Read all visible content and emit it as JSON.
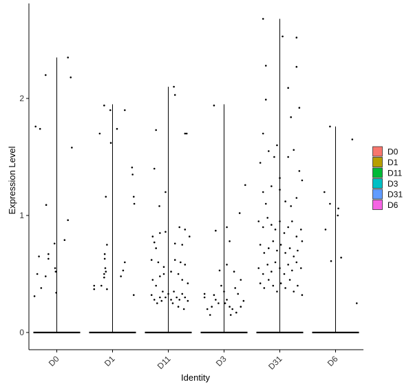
{
  "chart_data": {
    "type": "scatter",
    "subtype": "violin-jitter",
    "xlabel": "Identity",
    "ylabel": "Expression Level",
    "ylim": [
      -0.15,
      2.8
    ],
    "y_ticks": [
      0,
      1,
      2
    ],
    "categories": [
      "D0",
      "D1",
      "D11",
      "D3",
      "D31",
      "D6"
    ],
    "violin_max": [
      2.35,
      1.95,
      2.1,
      1.95,
      2.68,
      1.76
    ],
    "legend_position": "right",
    "grid": false,
    "legend": [
      {
        "name": "D0",
        "color": "#F8766D"
      },
      {
        "name": "D1",
        "color": "#B79F00"
      },
      {
        "name": "D11",
        "color": "#00BA38"
      },
      {
        "name": "D3",
        "color": "#00BFC4"
      },
      {
        "name": "D31",
        "color": "#619CFF"
      },
      {
        "name": "D6",
        "color": "#F564E3"
      }
    ],
    "points": {
      "D0": [
        [
          -0.38,
          1.76
        ],
        [
          -0.3,
          1.74
        ],
        [
          -0.2,
          2.2
        ],
        [
          0.2,
          2.35
        ],
        [
          0.25,
          2.18
        ],
        [
          0.27,
          1.58
        ],
        [
          -0.19,
          1.09
        ],
        [
          -0.32,
          0.65
        ],
        [
          -0.15,
          0.67
        ],
        [
          -0.15,
          0.63
        ],
        [
          -0.35,
          0.5
        ],
        [
          -0.28,
          0.38
        ],
        [
          -0.2,
          0.48
        ],
        [
          -0.4,
          0.31
        ],
        [
          -0.04,
          0.76
        ],
        [
          -0.03,
          0.55
        ],
        [
          -0.02,
          0.52
        ],
        [
          -0.01,
          0.34
        ],
        [
          0.14,
          0.79
        ],
        [
          0.2,
          0.96
        ]
      ],
      "D1": [
        [
          -0.15,
          1.94
        ],
        [
          -0.04,
          1.9
        ],
        [
          -0.03,
          1.62
        ],
        [
          0.08,
          1.74
        ],
        [
          0.22,
          1.9
        ],
        [
          -0.23,
          1.7
        ],
        [
          -0.12,
          1.16
        ],
        [
          0.35,
          1.41
        ],
        [
          0.36,
          1.35
        ],
        [
          0.38,
          1.16
        ],
        [
          0.39,
          1.1
        ],
        [
          -0.1,
          0.75
        ],
        [
          -0.14,
          0.67
        ],
        [
          -0.14,
          0.63
        ],
        [
          -0.13,
          0.55
        ],
        [
          -0.12,
          0.52
        ],
        [
          0.22,
          0.6
        ],
        [
          0.19,
          0.53
        ],
        [
          -0.33,
          0.4
        ],
        [
          -0.33,
          0.37
        ],
        [
          -0.2,
          0.4
        ],
        [
          -0.15,
          0.5
        ],
        [
          -0.15,
          0.47
        ],
        [
          -0.1,
          0.37
        ],
        [
          0.15,
          0.48
        ],
        [
          0.38,
          0.32
        ]
      ],
      "D11": [
        [
          -0.22,
          1.73
        ],
        [
          0.1,
          2.1
        ],
        [
          0.12,
          2.03
        ],
        [
          0.3,
          1.7
        ],
        [
          0.33,
          1.7
        ],
        [
          -0.25,
          1.4
        ],
        [
          -0.16,
          1.08
        ],
        [
          -0.05,
          1.2
        ],
        [
          -0.28,
          0.82
        ],
        [
          -0.25,
          0.77
        ],
        [
          -0.22,
          0.72
        ],
        [
          -0.15,
          0.85
        ],
        [
          -0.05,
          0.86
        ],
        [
          0.12,
          0.76
        ],
        [
          0.2,
          0.9
        ],
        [
          0.3,
          0.88
        ],
        [
          0.38,
          0.82
        ],
        [
          0.25,
          0.75
        ],
        [
          -0.3,
          0.62
        ],
        [
          -0.18,
          0.6
        ],
        [
          -0.08,
          0.56
        ],
        [
          0.12,
          0.62
        ],
        [
          0.22,
          0.6
        ],
        [
          0.3,
          0.58
        ],
        [
          -0.28,
          0.45
        ],
        [
          -0.22,
          0.4
        ],
        [
          -0.15,
          0.48
        ],
        [
          -0.08,
          0.5
        ],
        [
          0.05,
          0.52
        ],
        [
          0.18,
          0.5
        ],
        [
          0.25,
          0.45
        ],
        [
          0.35,
          0.42
        ],
        [
          -0.3,
          0.32
        ],
        [
          -0.25,
          0.28
        ],
        [
          -0.2,
          0.25
        ],
        [
          -0.15,
          0.3
        ],
        [
          -0.1,
          0.35
        ],
        [
          -0.05,
          0.3
        ],
        [
          0.0,
          0.33
        ],
        [
          0.05,
          0.28
        ],
        [
          0.1,
          0.35
        ],
        [
          0.15,
          0.3
        ],
        [
          0.2,
          0.28
        ],
        [
          0.25,
          0.33
        ],
        [
          0.3,
          0.3
        ],
        [
          0.35,
          0.27
        ],
        [
          -0.12,
          0.27
        ],
        [
          0.08,
          0.25
        ],
        [
          0.18,
          0.22
        ],
        [
          0.28,
          0.2
        ]
      ],
      "D3": [
        [
          -0.18,
          1.94
        ],
        [
          -0.15,
          0.87
        ],
        [
          0.05,
          0.9
        ],
        [
          0.1,
          0.78
        ],
        [
          0.28,
          1.02
        ],
        [
          0.38,
          1.26
        ],
        [
          -0.08,
          0.53
        ],
        [
          0.05,
          0.58
        ],
        [
          0.18,
          0.52
        ],
        [
          0.3,
          0.45
        ],
        [
          -0.35,
          0.33
        ],
        [
          -0.35,
          0.3
        ],
        [
          -0.3,
          0.2
        ],
        [
          -0.25,
          0.15
        ],
        [
          -0.18,
          0.32
        ],
        [
          -0.15,
          0.28
        ],
        [
          -0.1,
          0.25
        ],
        [
          -0.05,
          0.4
        ],
        [
          0.0,
          0.35
        ],
        [
          0.05,
          0.28
        ],
        [
          0.1,
          0.22
        ],
        [
          0.15,
          0.2
        ],
        [
          0.2,
          0.38
        ],
        [
          0.25,
          0.33
        ],
        [
          0.3,
          0.22
        ],
        [
          0.35,
          0.27
        ],
        [
          -0.22,
          0.22
        ],
        [
          0.02,
          0.25
        ],
        [
          0.12,
          0.15
        ],
        [
          0.22,
          0.17
        ]
      ],
      "D31": [
        [
          -0.3,
          2.68
        ],
        [
          0.05,
          2.53
        ],
        [
          0.3,
          2.52
        ],
        [
          -0.25,
          2.28
        ],
        [
          0.3,
          2.27
        ],
        [
          0.15,
          2.09
        ],
        [
          -0.25,
          1.99
        ],
        [
          0.35,
          1.92
        ],
        [
          0.2,
          1.84
        ],
        [
          -0.3,
          1.7
        ],
        [
          -0.05,
          1.6
        ],
        [
          0.25,
          1.56
        ],
        [
          -0.35,
          1.45
        ],
        [
          -0.2,
          1.55
        ],
        [
          -0.1,
          1.5
        ],
        [
          0.0,
          1.32
        ],
        [
          0.15,
          1.5
        ],
        [
          0.35,
          1.38
        ],
        [
          0.4,
          1.3
        ],
        [
          -0.3,
          1.2
        ],
        [
          -0.25,
          1.1
        ],
        [
          -0.15,
          1.25
        ],
        [
          0.0,
          1.22
        ],
        [
          0.1,
          1.12
        ],
        [
          0.2,
          1.08
        ],
        [
          0.3,
          1.15
        ],
        [
          -0.38,
          0.95
        ],
        [
          -0.3,
          0.9
        ],
        [
          -0.22,
          0.98
        ],
        [
          -0.15,
          0.92
        ],
        [
          -0.08,
          0.88
        ],
        [
          0.0,
          0.95
        ],
        [
          0.08,
          0.85
        ],
        [
          0.15,
          0.9
        ],
        [
          0.22,
          0.95
        ],
        [
          0.3,
          0.82
        ],
        [
          0.38,
          0.88
        ],
        [
          -0.35,
          0.75
        ],
        [
          -0.28,
          0.68
        ],
        [
          -0.2,
          0.72
        ],
        [
          -0.12,
          0.78
        ],
        [
          -0.05,
          0.7
        ],
        [
          0.02,
          0.75
        ],
        [
          0.1,
          0.68
        ],
        [
          0.18,
          0.72
        ],
        [
          0.25,
          0.65
        ],
        [
          0.32,
          0.7
        ],
        [
          0.4,
          0.78
        ],
        [
          -0.38,
          0.55
        ],
        [
          -0.3,
          0.5
        ],
        [
          -0.22,
          0.58
        ],
        [
          -0.15,
          0.52
        ],
        [
          -0.08,
          0.6
        ],
        [
          0.0,
          0.55
        ],
        [
          0.08,
          0.5
        ],
        [
          0.15,
          0.58
        ],
        [
          0.22,
          0.53
        ],
        [
          0.3,
          0.6
        ],
        [
          0.38,
          0.55
        ],
        [
          -0.35,
          0.42
        ],
        [
          -0.28,
          0.38
        ],
        [
          -0.2,
          0.45
        ],
        [
          -0.12,
          0.4
        ],
        [
          -0.05,
          0.35
        ],
        [
          0.02,
          0.42
        ],
        [
          0.1,
          0.38
        ],
        [
          0.18,
          0.45
        ],
        [
          0.25,
          0.35
        ],
        [
          0.32,
          0.4
        ],
        [
          0.4,
          0.32
        ]
      ],
      "D6": [
        [
          -0.1,
          1.76
        ],
        [
          -0.2,
          1.2
        ],
        [
          -0.18,
          0.88
        ],
        [
          -0.1,
          1.1
        ],
        [
          0.05,
          1.06
        ],
        [
          0.04,
          1.0
        ],
        [
          -0.08,
          0.61
        ],
        [
          0.1,
          0.64
        ],
        [
          0.3,
          1.65
        ],
        [
          0.38,
          0.25
        ]
      ]
    }
  }
}
